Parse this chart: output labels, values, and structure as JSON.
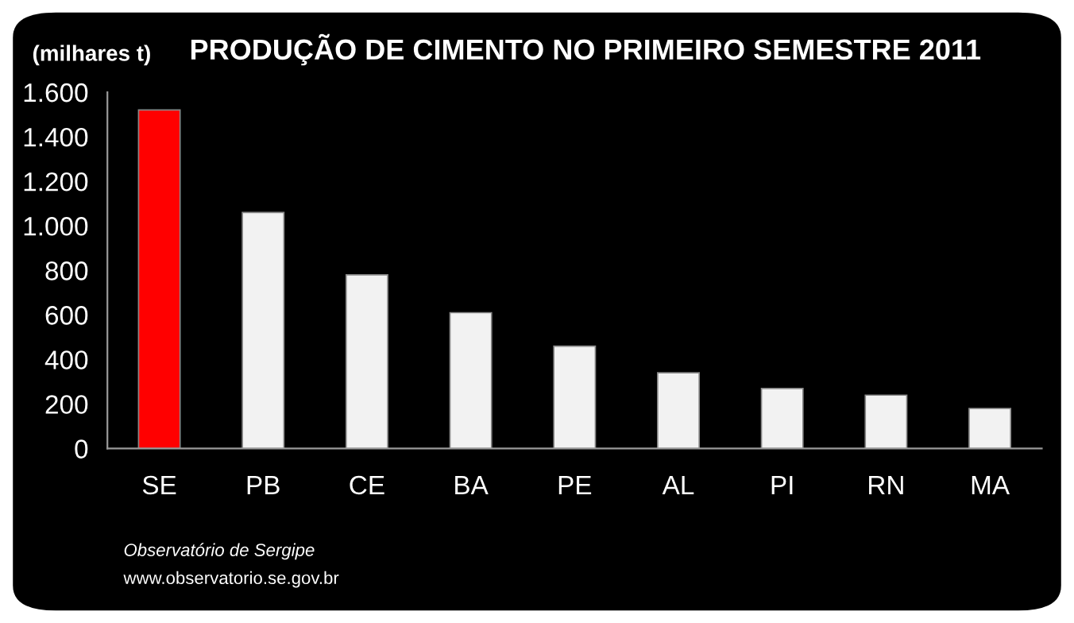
{
  "chart_data": {
    "type": "bar",
    "title": "PRODUÇÃO DE CIMENTO NO PRIMEIRO SEMESTRE 2011",
    "ylabel": "(milhares t)",
    "categories": [
      "SE",
      "PB",
      "CE",
      "BA",
      "PE",
      "AL",
      "PI",
      "RN",
      "MA"
    ],
    "values": [
      1520,
      1060,
      780,
      610,
      460,
      340,
      270,
      240,
      180
    ],
    "colors": [
      "#ff0000",
      "#f2f2f2",
      "#f2f2f2",
      "#f2f2f2",
      "#f2f2f2",
      "#f2f2f2",
      "#f2f2f2",
      "#f2f2f2",
      "#f2f2f2"
    ],
    "ylim": [
      0,
      1600
    ],
    "yticks": [
      0,
      200,
      400,
      600,
      800,
      {
        "value": 1000,
        "label": "1.000"
      },
      {
        "value": 1200,
        "label": "1.200"
      },
      {
        "value": 1400,
        "label": "1.400"
      },
      {
        "value": 1600,
        "label": "1.600"
      }
    ],
    "grid": false,
    "annotations": [
      "Observatório de Sergipe",
      "www.observatorio.se.gov.br"
    ]
  }
}
